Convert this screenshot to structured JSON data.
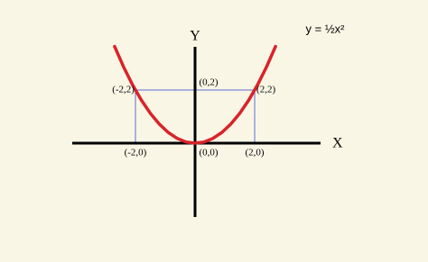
{
  "chart_data": {
    "type": "line",
    "title": "y = ½x²",
    "x_label": "X",
    "y_label": "Y",
    "x": [
      -2.7,
      -2.4,
      -2.1,
      -1.8,
      -1.5,
      -1.2,
      -0.9,
      -0.6,
      -0.3,
      0,
      0.3,
      0.6,
      0.9,
      1.2,
      1.5,
      1.8,
      2.1,
      2.4,
      2.7
    ],
    "values": [
      3.645,
      2.88,
      2.205,
      1.62,
      1.125,
      0.72,
      0.405,
      0.18,
      0.045,
      0,
      0.045,
      0.18,
      0.405,
      0.72,
      1.125,
      1.62,
      2.205,
      2.88,
      3.645
    ],
    "color": "#d9232a",
    "xlim": [
      -4.12,
      4.21
    ],
    "ylim": [
      -2.78,
      3.63
    ],
    "annotations": [
      {
        "text": "(-2,2)",
        "x": -2,
        "y": 2
      },
      {
        "text": "(0,2)",
        "x": 0,
        "y": 2
      },
      {
        "text": "(2,2)",
        "x": 2,
        "y": 2
      },
      {
        "text": "(-2,0)",
        "x": -2,
        "y": 0
      },
      {
        "text": "(0,0)",
        "x": 0,
        "y": 0
      },
      {
        "text": "(2,0)",
        "x": 2,
        "y": 0
      }
    ]
  }
}
